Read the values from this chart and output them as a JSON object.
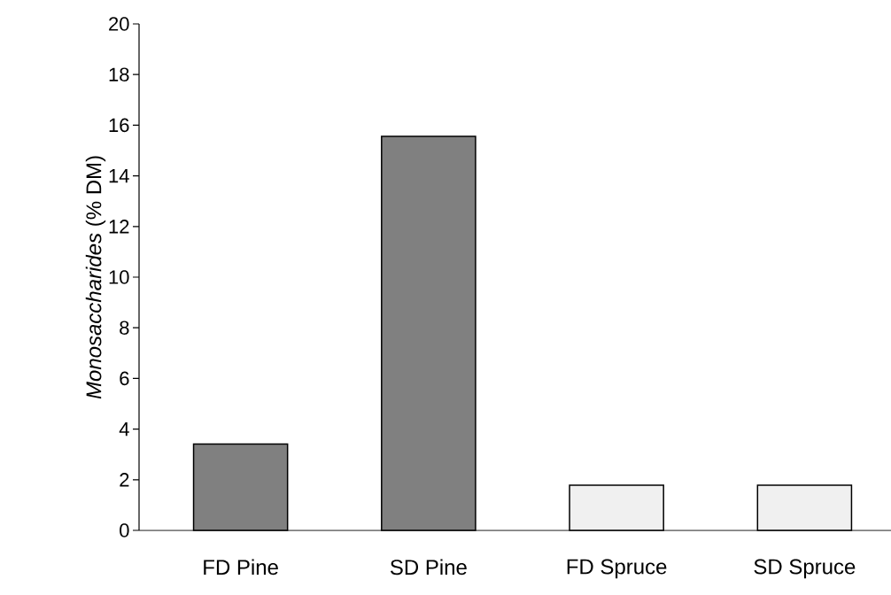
{
  "chart_data": {
    "type": "bar",
    "ylabel": "*Monosaccharides* (% DM)",
    "categories": [
      "FD Pine",
      "SD Pine",
      "FD Spruce",
      "SD Spruce"
    ],
    "values": [
      3.41,
      15.56,
      1.78,
      1.78
    ],
    "colors": [
      "#808080",
      "#808080",
      "#f0f0f0",
      "#f0f0f0"
    ],
    "ylim": [
      0,
      20
    ],
    "yticks": [
      0,
      2,
      4,
      6,
      8,
      10,
      12,
      14,
      16,
      18,
      20
    ],
    "grid": false
  }
}
